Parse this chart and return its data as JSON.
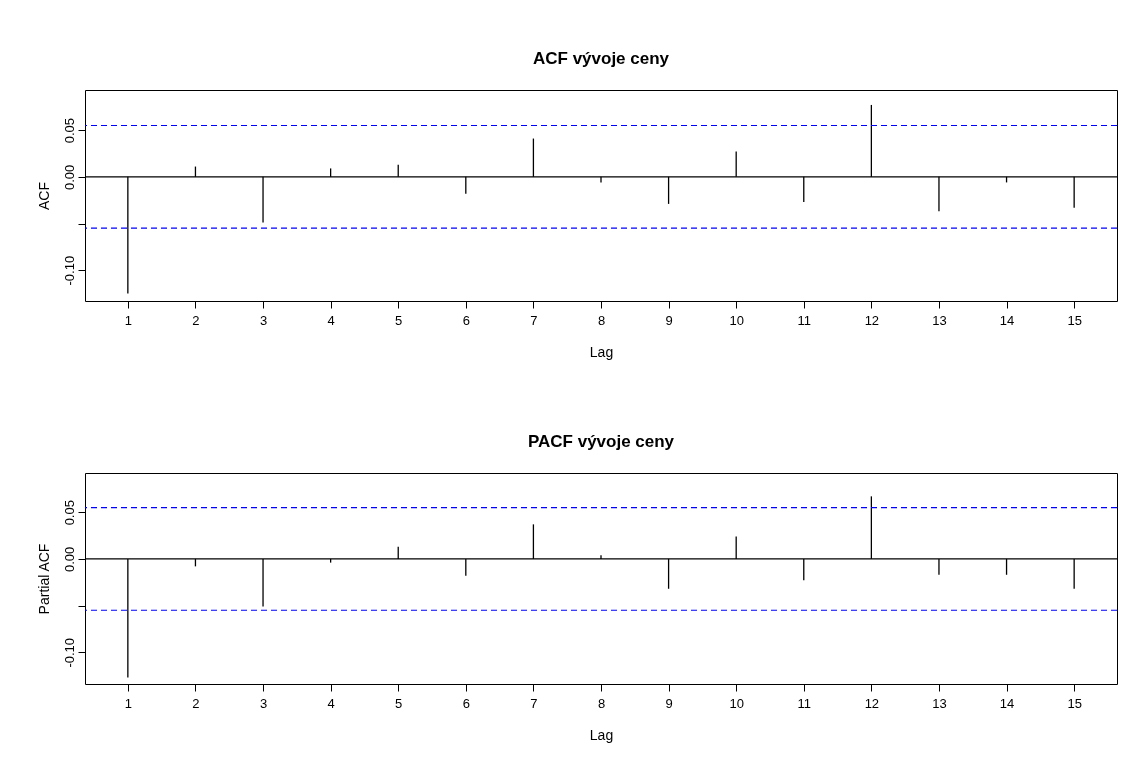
{
  "chart_data": [
    {
      "type": "bar",
      "title": "ACF vývoje ceny",
      "xlabel": "Lag",
      "ylabel": "ACF",
      "x": [
        1,
        2,
        3,
        4,
        5,
        6,
        7,
        8,
        9,
        10,
        11,
        12,
        13,
        14,
        15
      ],
      "xlim": [
        0.44,
        15.56
      ],
      "xticks": [
        1,
        2,
        3,
        4,
        5,
        6,
        7,
        8,
        9,
        10,
        11,
        12,
        13,
        14,
        15
      ],
      "ylim": [
        -0.133,
        0.093
      ],
      "yticks": [
        {
          "value": -0.1,
          "label": "-0.10"
        },
        {
          "value": -0.05,
          "label": null
        },
        {
          "value": 0,
          "label": "0.00"
        },
        {
          "value": 0.05,
          "label": "0.05"
        }
      ],
      "series": [
        {
          "color": "#000000",
          "values": [
            -0.125,
            0.011,
            -0.049,
            0.009,
            0.013,
            -0.018,
            0.041,
            -0.006,
            -0.029,
            0.027,
            -0.027,
            0.077,
            -0.037,
            -0.006,
            -0.033
          ]
        }
      ],
      "ref_lines": [
        {
          "axis": "y",
          "value": 0,
          "color": "#000000",
          "line_style": "solid"
        },
        {
          "axis": "y",
          "value": 0.055,
          "color": "#0000ff",
          "line_style": "dashed"
        },
        {
          "axis": "y",
          "value": -0.055,
          "color": "#0000ff",
          "line_style": "dashed"
        }
      ]
    },
    {
      "type": "bar",
      "title": "PACF vývoje ceny",
      "xlabel": "Lag",
      "ylabel": "Partial ACF",
      "x": [
        1,
        2,
        3,
        4,
        5,
        6,
        7,
        8,
        9,
        10,
        11,
        12,
        13,
        14,
        15
      ],
      "xlim": [
        0.44,
        15.56
      ],
      "xticks": [
        1,
        2,
        3,
        4,
        5,
        6,
        7,
        8,
        9,
        10,
        11,
        12,
        13,
        14,
        15
      ],
      "ylim": [
        -0.134,
        0.092
      ],
      "yticks": [
        {
          "value": -0.1,
          "label": "-0.10"
        },
        {
          "value": -0.05,
          "label": null
        },
        {
          "value": 0,
          "label": "0.00"
        },
        {
          "value": 0.05,
          "label": "0.05"
        }
      ],
      "series": [
        {
          "color": "#000000",
          "values": [
            -0.127,
            -0.008,
            -0.051,
            -0.004,
            0.013,
            -0.018,
            0.037,
            0.004,
            -0.032,
            0.024,
            -0.023,
            0.067,
            -0.017,
            -0.017,
            -0.032
          ]
        }
      ],
      "ref_lines": [
        {
          "axis": "y",
          "value": 0,
          "color": "#000000",
          "line_style": "solid"
        },
        {
          "axis": "y",
          "value": 0.055,
          "color": "#0000ff",
          "line_style": "dashed"
        },
        {
          "axis": "y",
          "value": -0.055,
          "color": "#0000ff",
          "line_style": "dashed"
        }
      ]
    }
  ]
}
